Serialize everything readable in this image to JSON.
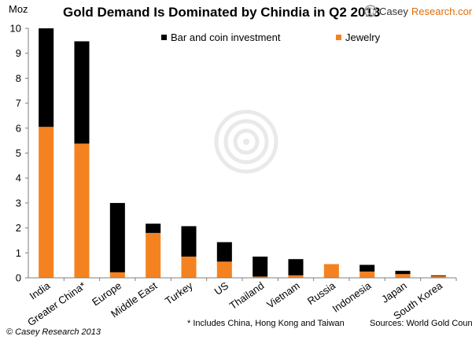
{
  "header": {
    "title": "Gold Demand Is Dominated by Chindia in Q2 2013",
    "unit": "Moz",
    "brand_prefix": "Casey",
    "brand_suffix": "Research.com"
  },
  "footer": {
    "copyright": "© Casey Research 2013",
    "note": "* Includes China, Hong Kong and Taiwan",
    "source": "Sources: World Gold Council"
  },
  "colors": {
    "bar_and_coin": "#000000",
    "jewelry": "#f58220",
    "brand_accent": "#e36c0a"
  },
  "chart_data": {
    "type": "bar",
    "stacked": true,
    "title": "Gold Demand Is Dominated by Chindia in Q2 2013",
    "ylabel": "Moz",
    "ylim": [
      0,
      10
    ],
    "yticks": [
      0,
      1,
      2,
      3,
      4,
      5,
      6,
      7,
      8,
      9,
      10
    ],
    "grid": false,
    "legend_placement": "top",
    "categories": [
      "India",
      "Greater China*",
      "Europe",
      "Middle East",
      "Turkey",
      "US",
      "Thailand",
      "Vietnam",
      "Russia",
      "Indonesia",
      "Japan",
      "South Korea"
    ],
    "series": [
      {
        "name": "Jewelry",
        "color": "#f58220",
        "values": [
          6.05,
          5.38,
          0.22,
          1.8,
          0.85,
          0.65,
          0.05,
          0.1,
          0.55,
          0.25,
          0.15,
          0.07
        ]
      },
      {
        "name": "Bar and coin investment",
        "color": "#000000",
        "values": [
          3.95,
          4.1,
          2.78,
          0.37,
          1.22,
          0.78,
          0.8,
          0.65,
          0.0,
          0.27,
          0.13,
          0.03
        ]
      }
    ]
  }
}
